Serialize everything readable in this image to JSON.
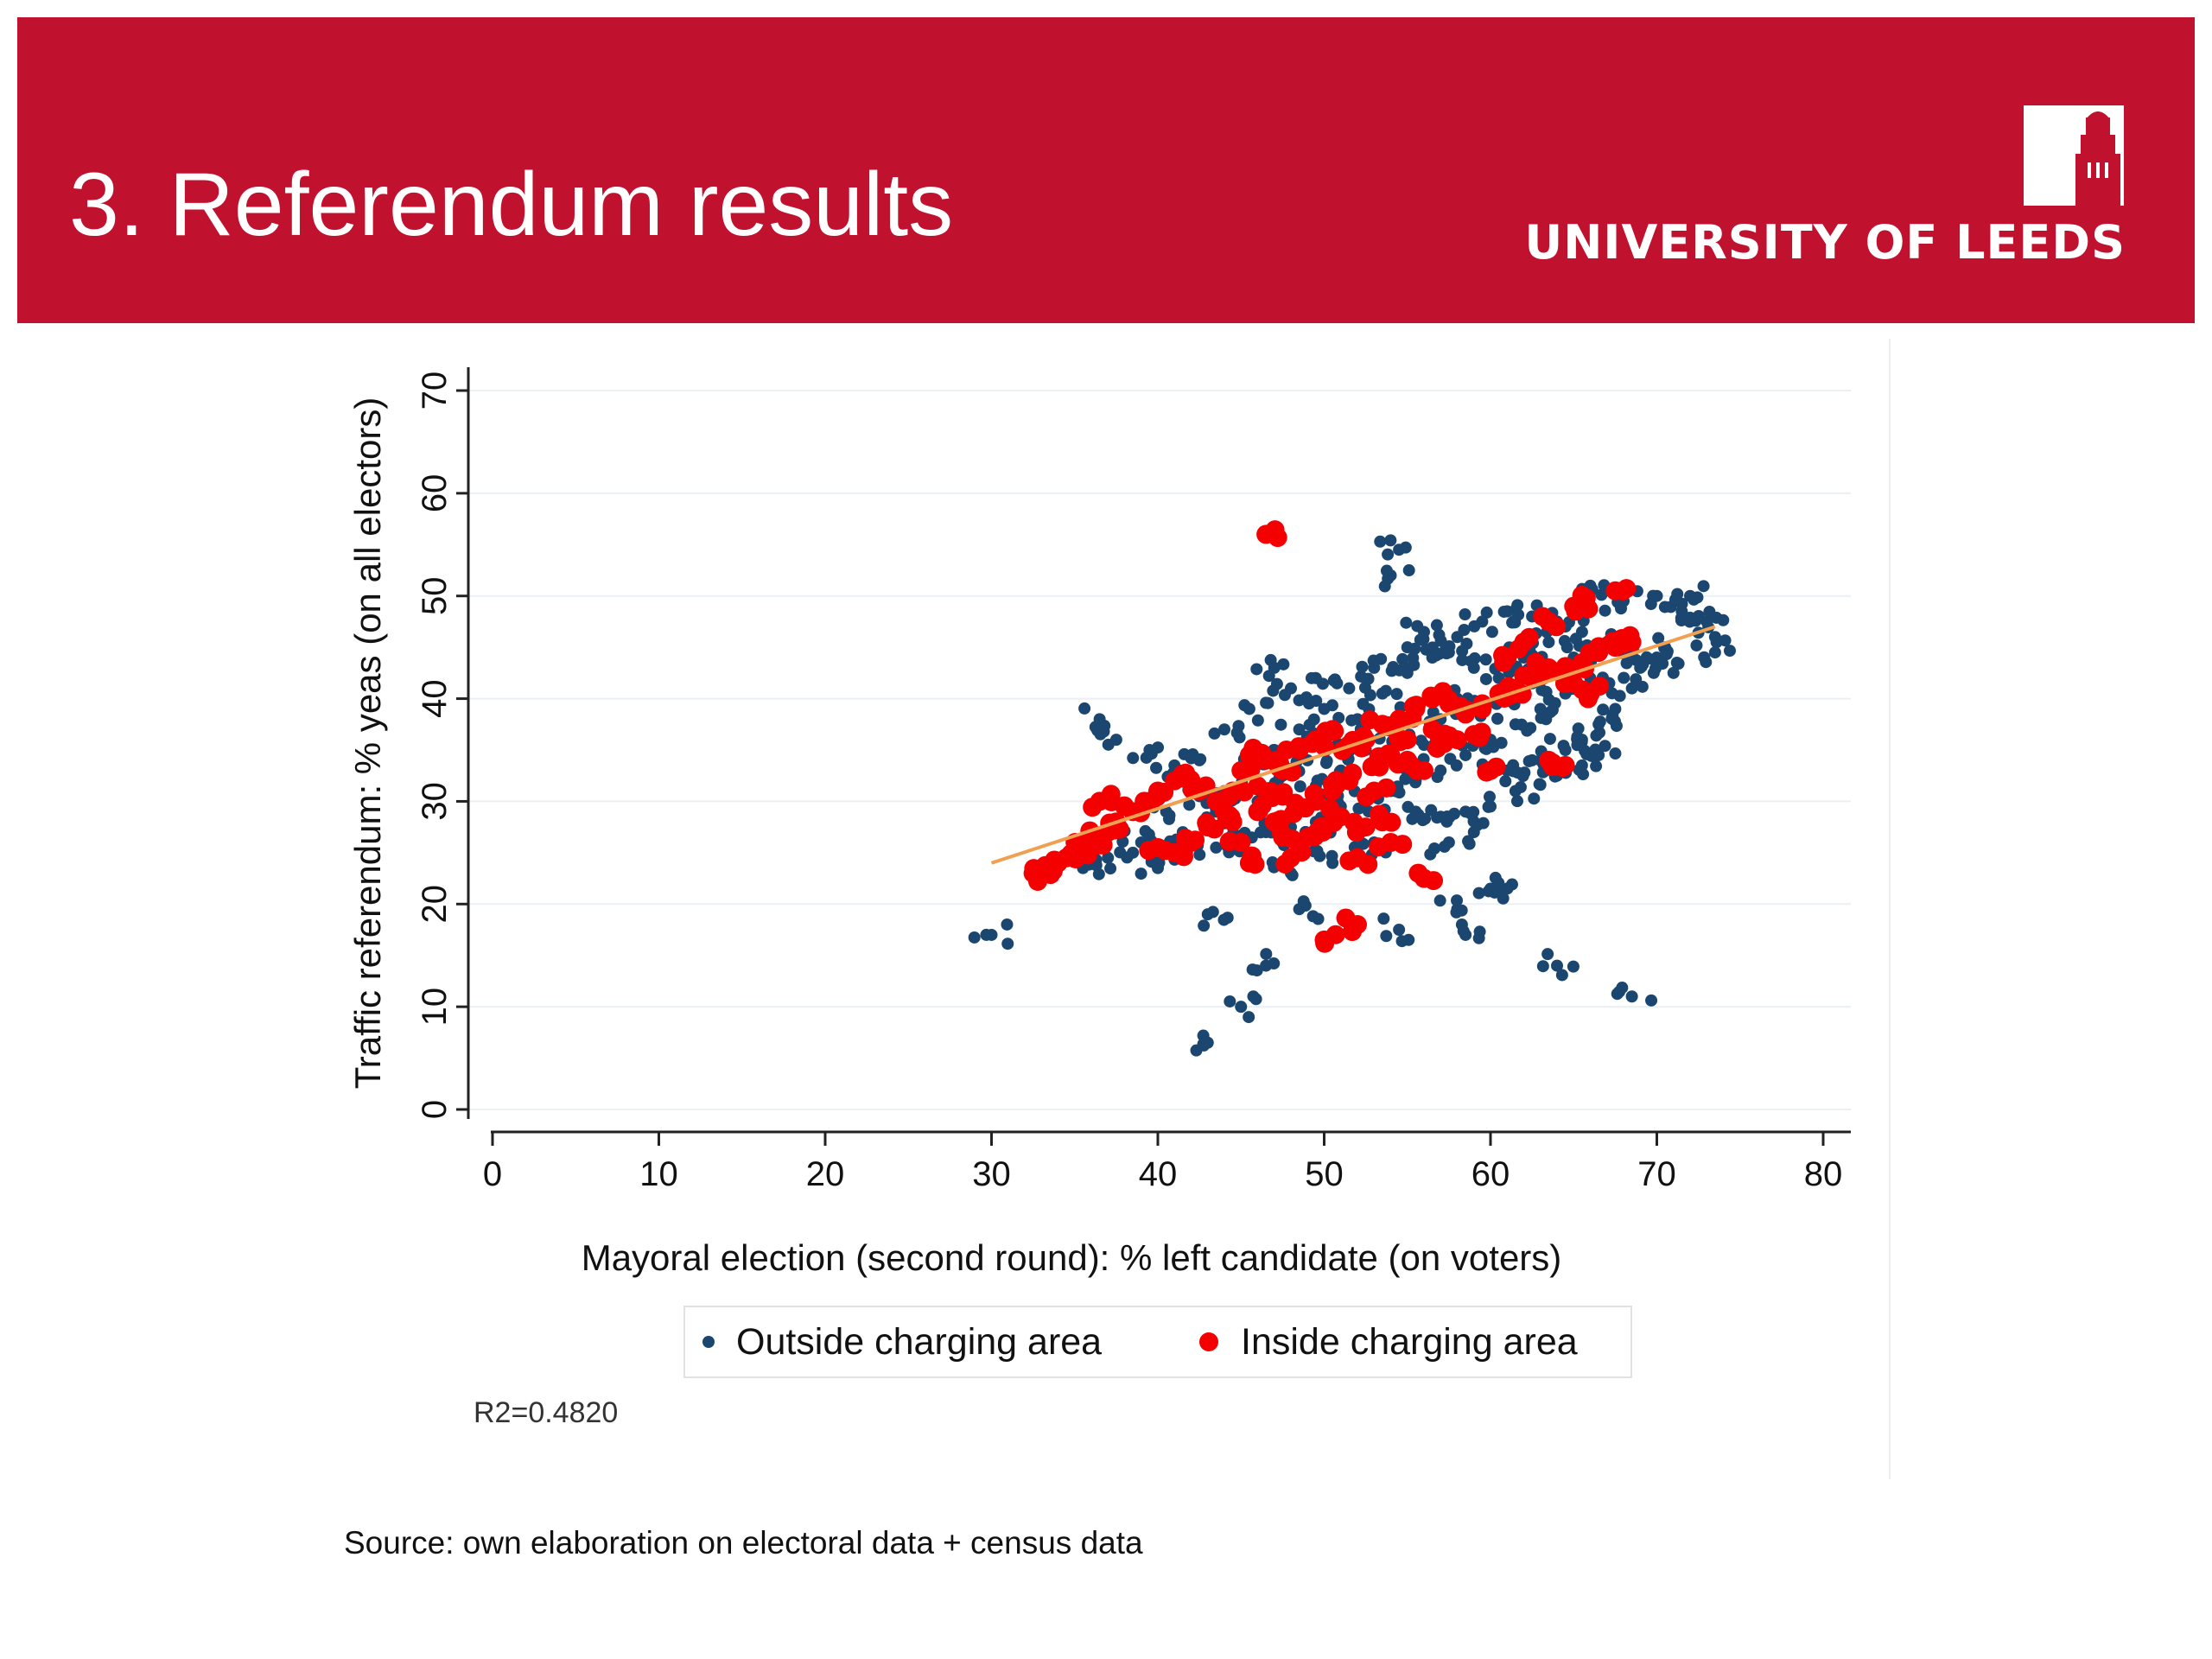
{
  "slide": {
    "title": "3. Referendum results",
    "logo_text": "UNIVERSITY OF LEEDS",
    "source_note": "Source: own elaboration on electoral data + census data"
  },
  "colors": {
    "banner": "#c0112f",
    "outside": "#1a4670",
    "inside": "#f50000",
    "fit_line": "#f0a050"
  },
  "chart_data": {
    "type": "scatter",
    "xlabel": "Mayoral election (second round): % left candidate (on voters)",
    "ylabel": "Traffic referendum: % yeas (on all electors)",
    "xlim": [
      0,
      80
    ],
    "ylim": [
      0,
      70
    ],
    "xticks": [
      0,
      10,
      20,
      30,
      40,
      50,
      60,
      70,
      80
    ],
    "yticks": [
      0,
      10,
      20,
      30,
      40,
      50,
      60,
      70
    ],
    "grid": "horizontal",
    "legend_position": "bottom",
    "annotation": "R2=0.4820",
    "fit_line": {
      "x": [
        30,
        73.5
      ],
      "y": [
        24,
        47
      ]
    },
    "series": [
      {
        "name": "Outside charging area",
        "color": "#1a4670",
        "points": [
          [
            30,
            17
          ],
          [
            36.5,
            38
          ],
          [
            37.5,
            36
          ],
          [
            39.5,
            35
          ],
          [
            43,
            19
          ],
          [
            43,
            6.5
          ],
          [
            45,
            10
          ],
          [
            46.5,
            14
          ],
          [
            47.5,
            26
          ],
          [
            48,
            23
          ],
          [
            48.5,
            19.5
          ],
          [
            50.5,
            24
          ],
          [
            53,
            26
          ],
          [
            54.5,
            17.5
          ],
          [
            54,
            52
          ],
          [
            54.5,
            54.5
          ],
          [
            57.5,
            26
          ],
          [
            58,
            19.5
          ],
          [
            58.5,
            17
          ],
          [
            59,
            27
          ],
          [
            60,
            21.5
          ],
          [
            60.5,
            21.5
          ],
          [
            64,
            14
          ],
          [
            68.5,
            11
          ],
          [
            66,
            51
          ],
          [
            68,
            49.5
          ],
          [
            70,
            50
          ],
          [
            71.5,
            48.5
          ],
          [
            72,
            50
          ],
          [
            73.5,
            46
          ],
          [
            73.5,
            44.5
          ],
          [
            73,
            47.5
          ],
          [
            72.5,
            48
          ],
          [
            70.5,
            45
          ],
          [
            69,
            43
          ],
          [
            68.5,
            41
          ],
          [
            67.5,
            39
          ],
          [
            66.5,
            37.5
          ],
          [
            65.5,
            36
          ],
          [
            64.5,
            35
          ],
          [
            63,
            34
          ],
          [
            61.5,
            31
          ],
          [
            60,
            29.5
          ],
          [
            58.5,
            29
          ],
          [
            57,
            28.5
          ],
          [
            55.5,
            29
          ],
          [
            47,
            43
          ],
          [
            48,
            41
          ],
          [
            49.5,
            42
          ],
          [
            45.5,
            39
          ],
          [
            44,
            37
          ],
          [
            42.5,
            34
          ],
          [
            41,
            33.5
          ],
          [
            40.5,
            29
          ],
          [
            39,
            26
          ],
          [
            38.5,
            25
          ],
          [
            37,
            24.5
          ],
          [
            35.5,
            23.5
          ],
          [
            40,
            23.5
          ],
          [
            41.5,
            27
          ],
          [
            43.5,
            29
          ],
          [
            44.5,
            27.5
          ],
          [
            46,
            30
          ],
          [
            47.5,
            32.5
          ],
          [
            49,
            34
          ],
          [
            50.5,
            36.5
          ],
          [
            52,
            38
          ],
          [
            53.5,
            40.5
          ],
          [
            55,
            42.5
          ],
          [
            56.5,
            44
          ],
          [
            58,
            46
          ],
          [
            59.5,
            47.5
          ],
          [
            61,
            48.5
          ],
          [
            62.5,
            48
          ],
          [
            64,
            47.5
          ],
          [
            65.5,
            46.5
          ],
          [
            67,
            45.5
          ],
          [
            68.5,
            44.5
          ],
          [
            70,
            44
          ],
          [
            71,
            42.5
          ],
          [
            66,
            42
          ],
          [
            64.5,
            40.5
          ],
          [
            63,
            39
          ],
          [
            61.5,
            37.5
          ],
          [
            60,
            36
          ],
          [
            58.5,
            34.5
          ],
          [
            57,
            33
          ],
          [
            55.5,
            32
          ],
          [
            54,
            31
          ],
          [
            52.5,
            30
          ],
          [
            51,
            29.5
          ],
          [
            49.5,
            28
          ],
          [
            48,
            27.5
          ],
          [
            46.5,
            27
          ],
          [
            45,
            26
          ],
          [
            43.5,
            25.5
          ],
          [
            55,
            45
          ],
          [
            56,
            46.5
          ],
          [
            57.5,
            44.5
          ],
          [
            59,
            43
          ],
          [
            60.5,
            42
          ],
          [
            62,
            44
          ],
          [
            63.5,
            45.5
          ],
          [
            65,
            44
          ],
          [
            53,
            43
          ],
          [
            51.5,
            41
          ],
          [
            50,
            39
          ],
          [
            48.5,
            37
          ],
          [
            47,
            35
          ],
          [
            45.5,
            33
          ],
          [
            44,
            31
          ],
          [
            42.5,
            30.5
          ],
          [
            58,
            40
          ],
          [
            59.5,
            39
          ],
          [
            61,
            40.5
          ],
          [
            62.5,
            41.5
          ],
          [
            57,
            38
          ],
          [
            55.5,
            38.5
          ],
          [
            54,
            37
          ],
          [
            52.5,
            35
          ],
          [
            51,
            33
          ],
          [
            49.5,
            31.5
          ],
          [
            61,
            33
          ],
          [
            62.5,
            34
          ],
          [
            64,
            32.5
          ],
          [
            65.5,
            33.5
          ],
          [
            66.5,
            34.5
          ],
          [
            56,
            35.5
          ]
        ]
      },
      {
        "name": "Inside charging area",
        "color": "#f50000",
        "points": [
          [
            46.5,
            56
          ],
          [
            50,
            16.5
          ],
          [
            52,
            18
          ],
          [
            56,
            22.5
          ],
          [
            52,
            24.5
          ],
          [
            54,
            26
          ],
          [
            53.5,
            28
          ],
          [
            52.5,
            27.5
          ],
          [
            48,
            24.5
          ],
          [
            47.5,
            26.5
          ],
          [
            45,
            26
          ],
          [
            45.5,
            24
          ],
          [
            44.5,
            28
          ],
          [
            44,
            29
          ],
          [
            43.5,
            30
          ],
          [
            42.5,
            31
          ],
          [
            42,
            32
          ],
          [
            41,
            32
          ],
          [
            40,
            31
          ],
          [
            39.5,
            30
          ],
          [
            38.5,
            29
          ],
          [
            37.5,
            28
          ],
          [
            37,
            27
          ],
          [
            36.5,
            26.5
          ],
          [
            36,
            26
          ],
          [
            35.5,
            25.5
          ],
          [
            35,
            25
          ],
          [
            34.5,
            24.5
          ],
          [
            34,
            24
          ],
          [
            33.5,
            23.5
          ],
          [
            33,
            23
          ],
          [
            32.5,
            23
          ],
          [
            36.5,
            30
          ],
          [
            38,
            29.5
          ],
          [
            40,
            25.5
          ],
          [
            41,
            25
          ],
          [
            42,
            26
          ],
          [
            43,
            27.5
          ],
          [
            44.5,
            31
          ],
          [
            45,
            33
          ],
          [
            45.5,
            34.5
          ],
          [
            46.5,
            34
          ],
          [
            47.5,
            33
          ],
          [
            48.5,
            35
          ],
          [
            49.5,
            36
          ],
          [
            50.5,
            37
          ],
          [
            51.5,
            35.5
          ],
          [
            52.5,
            36
          ],
          [
            53.5,
            37.5
          ],
          [
            54.5,
            38
          ],
          [
            55.5,
            39
          ],
          [
            56.5,
            40
          ],
          [
            57.5,
            39.5
          ],
          [
            58.5,
            38.5
          ],
          [
            59.5,
            39
          ],
          [
            60.5,
            40.5
          ],
          [
            61.5,
            41
          ],
          [
            62.5,
            42
          ],
          [
            63.5,
            43
          ],
          [
            64.5,
            42.5
          ],
          [
            65.5,
            43.5
          ],
          [
            66.5,
            44.5
          ],
          [
            67.5,
            45
          ],
          [
            68.5,
            45.5
          ],
          [
            66,
            40.5
          ],
          [
            65,
            41.5
          ],
          [
            61,
            44
          ],
          [
            62,
            45.5
          ],
          [
            63.5,
            47.5
          ],
          [
            65,
            49
          ],
          [
            65.5,
            49.5
          ],
          [
            67.5,
            50.5
          ],
          [
            64.5,
            33.5
          ],
          [
            63.5,
            34
          ],
          [
            56,
            33
          ],
          [
            55,
            34
          ],
          [
            54,
            34.5
          ],
          [
            53,
            33.5
          ],
          [
            51.5,
            32
          ],
          [
            50.5,
            31
          ],
          [
            49.5,
            30
          ],
          [
            48.5,
            29.5
          ],
          [
            47.5,
            30.5
          ],
          [
            46,
            31.5
          ],
          [
            57,
            35.5
          ],
          [
            58,
            36
          ],
          [
            59,
            36.5
          ],
          [
            60,
            33
          ],
          [
            55,
            36
          ],
          [
            56.5,
            37
          ],
          [
            53,
            31
          ],
          [
            51,
            28.5
          ],
          [
            50,
            27.5
          ],
          [
            49,
            26.5
          ],
          [
            47,
            28
          ],
          [
            46,
            29
          ]
        ]
      }
    ]
  }
}
